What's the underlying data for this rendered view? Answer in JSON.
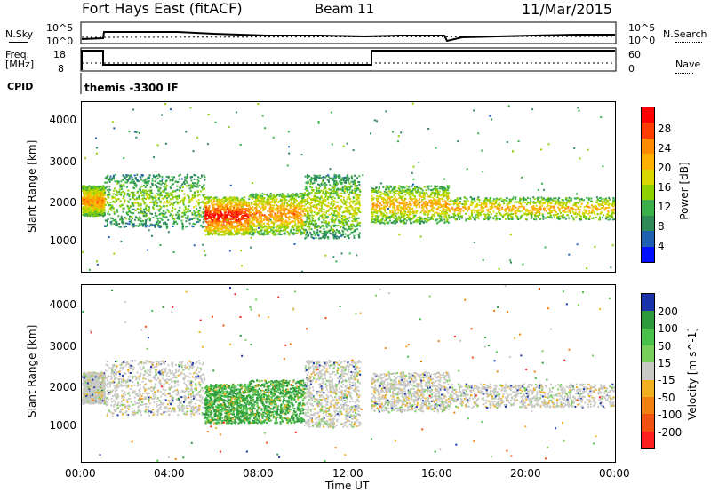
{
  "header": {
    "title_left": "Fort Hays East (fitACF)",
    "title_mid": "Beam 11",
    "title_right": "11/Mar/2015"
  },
  "top_panel": {
    "nsky_label": "N.Sky",
    "nsky_ticks": [
      "10^5",
      "10^0"
    ],
    "nsearch_label": "N.Search",
    "nsearch_ticks": [
      "10^5",
      "10^0"
    ],
    "freq_label_1": "Freq.",
    "freq_label_2": "[MHz]",
    "freq_ticks": [
      "18",
      "8"
    ],
    "nave_label": "Nave",
    "nave_ticks": [
      "60",
      "0"
    ],
    "cpid_label": "CPID",
    "cpid_text": "themis -3300 IF"
  },
  "panels": {
    "ylabel": "Slant Range [km]",
    "yticks": [
      "4000",
      "3000",
      "2000",
      "1000"
    ],
    "xticks": [
      "00:00",
      "04:00",
      "08:00",
      "12:00",
      "16:00",
      "20:00",
      "00:00"
    ],
    "xlabel": "Time UT"
  },
  "power_scale": {
    "label": "Power [dB]",
    "ticks": [
      "28",
      "24",
      "20",
      "16",
      "12",
      "8",
      "4"
    ],
    "colors": [
      "#ff0000",
      "#ff3d00",
      "#ff8c00",
      "#ffb000",
      "#d8d800",
      "#8fd000",
      "#3bb04a",
      "#2e8b57",
      "#2060b0",
      "#0010ff"
    ]
  },
  "velocity_scale": {
    "label": "Velocity [m s^-1]",
    "ticks": [
      "200",
      "100",
      "50",
      "15",
      "-15",
      "-50",
      "-100",
      "-200"
    ],
    "colors": [
      "#1a33aa",
      "#2d9b3c",
      "#48c04a",
      "#78d05a",
      "#c8c8c4",
      "#f0b020",
      "#f08010",
      "#f05010",
      "#ff2020"
    ]
  },
  "chart_data": {
    "type": "heatmap",
    "title": "Fort Hays East (fitACF)  Beam 11  11/Mar/2015",
    "xlabel": "Time UT",
    "ylabel": "Slant Range [km]",
    "x_ticks": [
      "00:00",
      "04:00",
      "08:00",
      "12:00",
      "16:00",
      "20:00",
      "00:00"
    ],
    "y_range_km": [
      0,
      4500
    ],
    "frequency_steps_MHz": [
      {
        "time_h": 0.0,
        "freq": 8
      },
      {
        "time_h": 0.0,
        "freq": 18
      },
      {
        "time_h": 1.0,
        "freq": 18
      },
      {
        "time_h": 1.0,
        "freq": 11
      },
      {
        "time_h": 13.0,
        "freq": 11
      },
      {
        "time_h": 13.0,
        "freq": 18
      },
      {
        "time_h": 24.0,
        "freq": 18
      }
    ],
    "power_colorbar_dB": [
      4,
      8,
      12,
      16,
      20,
      24,
      28
    ],
    "velocity_colorbar_ms": [
      -200,
      -100,
      -50,
      -15,
      15,
      50,
      100,
      200
    ],
    "echo_bands": [
      {
        "t0": 0.0,
        "t1": 1.0,
        "r0": 1500,
        "r1": 2300,
        "power": 22
      },
      {
        "t0": 1.0,
        "t1": 5.5,
        "r0": 1200,
        "r1": 2600,
        "power": 14
      },
      {
        "t0": 5.5,
        "t1": 7.5,
        "r0": 1000,
        "r1": 2000,
        "power": 28
      },
      {
        "t0": 7.5,
        "t1": 10.0,
        "r0": 1000,
        "r1": 2100,
        "power": 22
      },
      {
        "t0": 10.0,
        "t1": 12.5,
        "r0": 900,
        "r1": 2600,
        "power": 16
      },
      {
        "t0": 13.0,
        "t1": 16.5,
        "r0": 1300,
        "r1": 2300,
        "power": 20
      },
      {
        "t0": 16.5,
        "t1": 24.0,
        "r0": 1400,
        "r1": 2000,
        "power": 20
      }
    ]
  }
}
